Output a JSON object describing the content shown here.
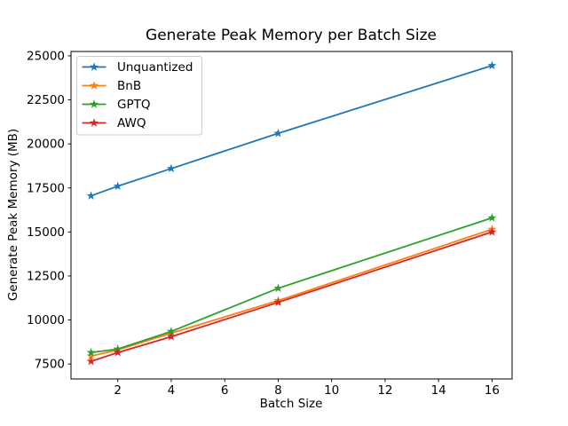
{
  "figure": {
    "title": "Generate Peak Memory per Batch Size",
    "xlabel": "Batch Size",
    "ylabel": "Generate Peak Memory (MB)"
  },
  "chart_data": {
    "type": "line",
    "title": "Generate Peak Memory per Batch Size",
    "xlabel": "Batch Size",
    "ylabel": "Generate Peak Memory (MB)",
    "x": [
      1,
      2,
      4,
      8,
      16
    ],
    "series": [
      {
        "name": "Unquantized",
        "color": "#1f77b4",
        "marker": "star",
        "values": [
          17050,
          17600,
          18600,
          20600,
          24450
        ]
      },
      {
        "name": "BnB",
        "color": "#ff7f0e",
        "marker": "star",
        "values": [
          7950,
          8300,
          9250,
          11100,
          15150
        ]
      },
      {
        "name": "GPTQ",
        "color": "#2ca02c",
        "marker": "star",
        "values": [
          8150,
          8350,
          9350,
          11800,
          15800
        ]
      },
      {
        "name": "AWQ",
        "color": "#d62728",
        "marker": "star",
        "values": [
          7650,
          8150,
          9050,
          11000,
          15000
        ]
      }
    ],
    "xticks": [
      2,
      4,
      6,
      8,
      10,
      12,
      14,
      16
    ],
    "yticks": [
      7500,
      10000,
      12500,
      15000,
      17500,
      20000,
      22500,
      25000
    ],
    "xlim": [
      0.25,
      16.75
    ],
    "ylim": [
      6650,
      25250
    ],
    "legend_position": "upper left",
    "grid": false,
    "colors": {
      "spine": "#000000",
      "legend_edge": "#cccccc",
      "background": "#ffffff"
    }
  }
}
